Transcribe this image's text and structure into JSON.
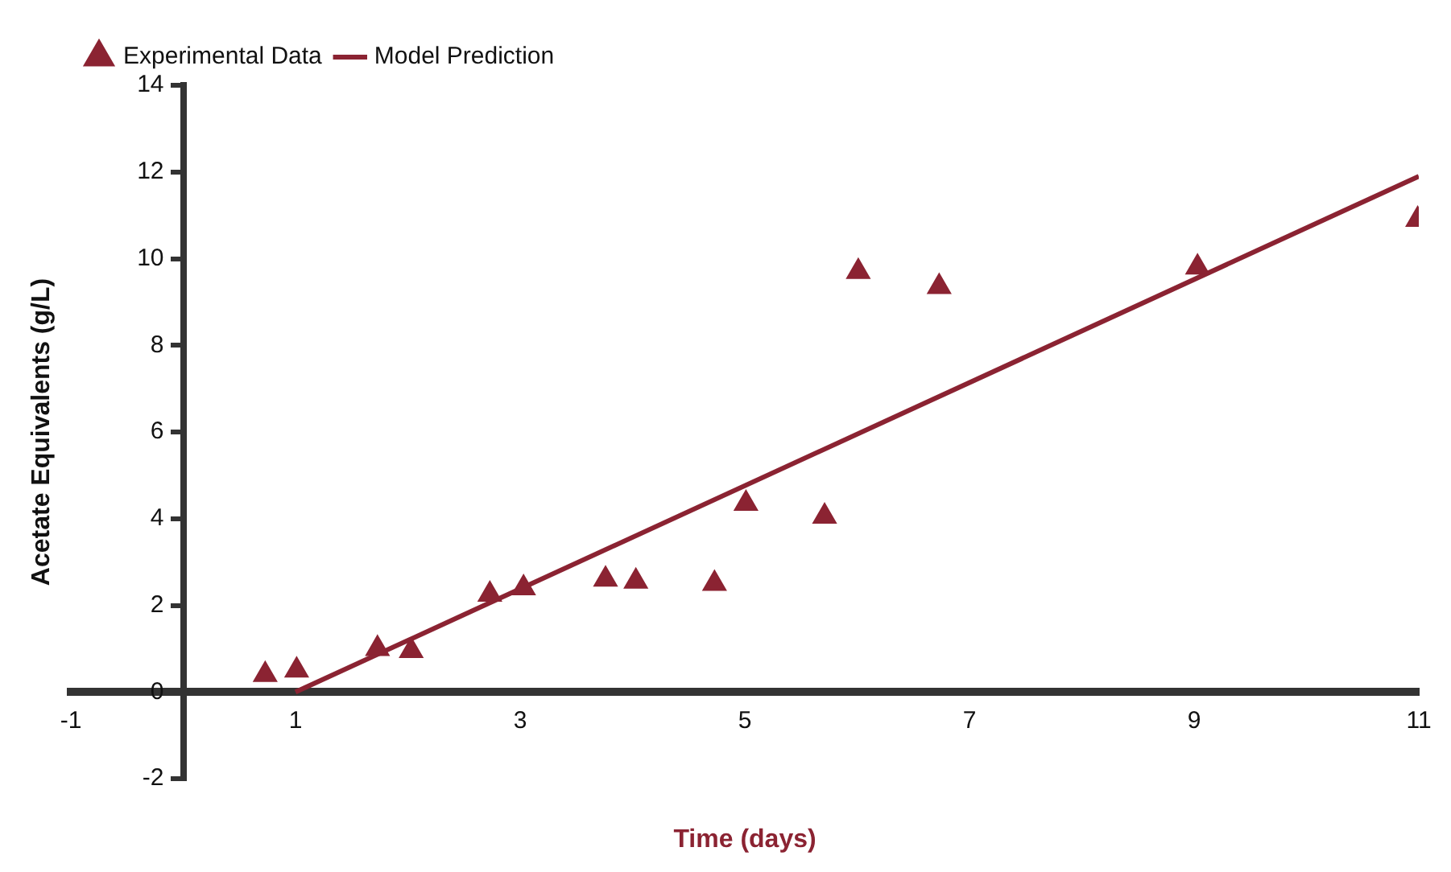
{
  "chart_data": {
    "type": "scatter",
    "xlabel": "Time (days)",
    "ylabel": "Acetate Equivalents (g/L)",
    "xlim": [
      -1,
      11
    ],
    "xticks": [
      -1,
      1,
      3,
      5,
      7,
      9,
      11
    ],
    "ylim": [
      -2,
      14
    ],
    "yticks": [
      -2,
      0,
      2,
      4,
      6,
      8,
      10,
      12,
      14
    ],
    "legend": "top left",
    "grid": false,
    "series": [
      {
        "name": "Experimental Data",
        "type": "scatter",
        "marker": "triangle",
        "color": "#8b2332",
        "x": [
          0.73,
          1.01,
          1.73,
          2.03,
          2.73,
          3.03,
          3.76,
          4.03,
          4.73,
          5.01,
          5.71,
          6.01,
          6.73,
          9.03,
          10.99
        ],
        "values": [
          0.4,
          0.5,
          1.0,
          0.95,
          2.25,
          2.4,
          2.6,
          2.55,
          2.5,
          4.35,
          4.05,
          9.7,
          9.35,
          9.8,
          10.9
        ]
      },
      {
        "name": "Model Prediction",
        "type": "line",
        "marker": "none",
        "line_style": "solid",
        "color": "#8b2332",
        "x": [
          1,
          11
        ],
        "values": [
          0,
          11.9
        ]
      }
    ]
  }
}
